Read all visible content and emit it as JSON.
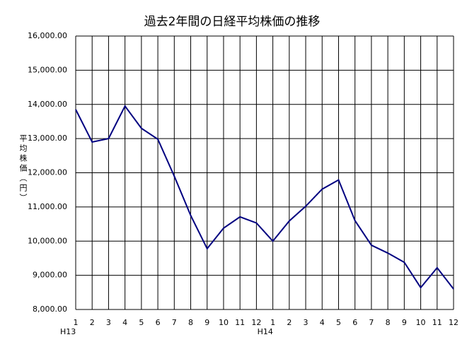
{
  "chart_data": {
    "type": "line",
    "title": "過去2年間の日経平均株価の推移",
    "y_label": "平均株価（円）",
    "categories": [
      "1",
      "2",
      "3",
      "4",
      "5",
      "6",
      "7",
      "8",
      "9",
      "10",
      "11",
      "12",
      "1",
      "2",
      "3",
      "4",
      "5",
      "6",
      "7",
      "8",
      "9",
      "10",
      "11",
      "12"
    ],
    "groups": [
      "H13",
      "H14"
    ],
    "series": [
      {
        "color": "#000080",
        "values": [
          13850,
          12900,
          13000,
          13950,
          13300,
          12980,
          11900,
          10750,
          9780,
          10380,
          10710,
          10530,
          10000,
          10590,
          11020,
          11520,
          11790,
          10600,
          9880,
          9650,
          9380,
          8640,
          9220,
          8600
        ]
      }
    ],
    "ylim": [
      8000,
      16000
    ],
    "yticks": [
      {
        "value": 8000,
        "label": "8,000.00"
      },
      {
        "value": 9000,
        "label": "9,000.00"
      },
      {
        "value": 10000,
        "label": "10,000.00"
      },
      {
        "value": 11000,
        "label": "11,000.00"
      },
      {
        "value": 12000,
        "label": "12,000.00"
      },
      {
        "value": 13000,
        "label": "13,000.00"
      },
      {
        "value": 14000,
        "label": "14,000.00"
      },
      {
        "value": 15000,
        "label": "15,000.00"
      },
      {
        "value": 16000,
        "label": "16,000.00"
      }
    ],
    "grid": true
  }
}
